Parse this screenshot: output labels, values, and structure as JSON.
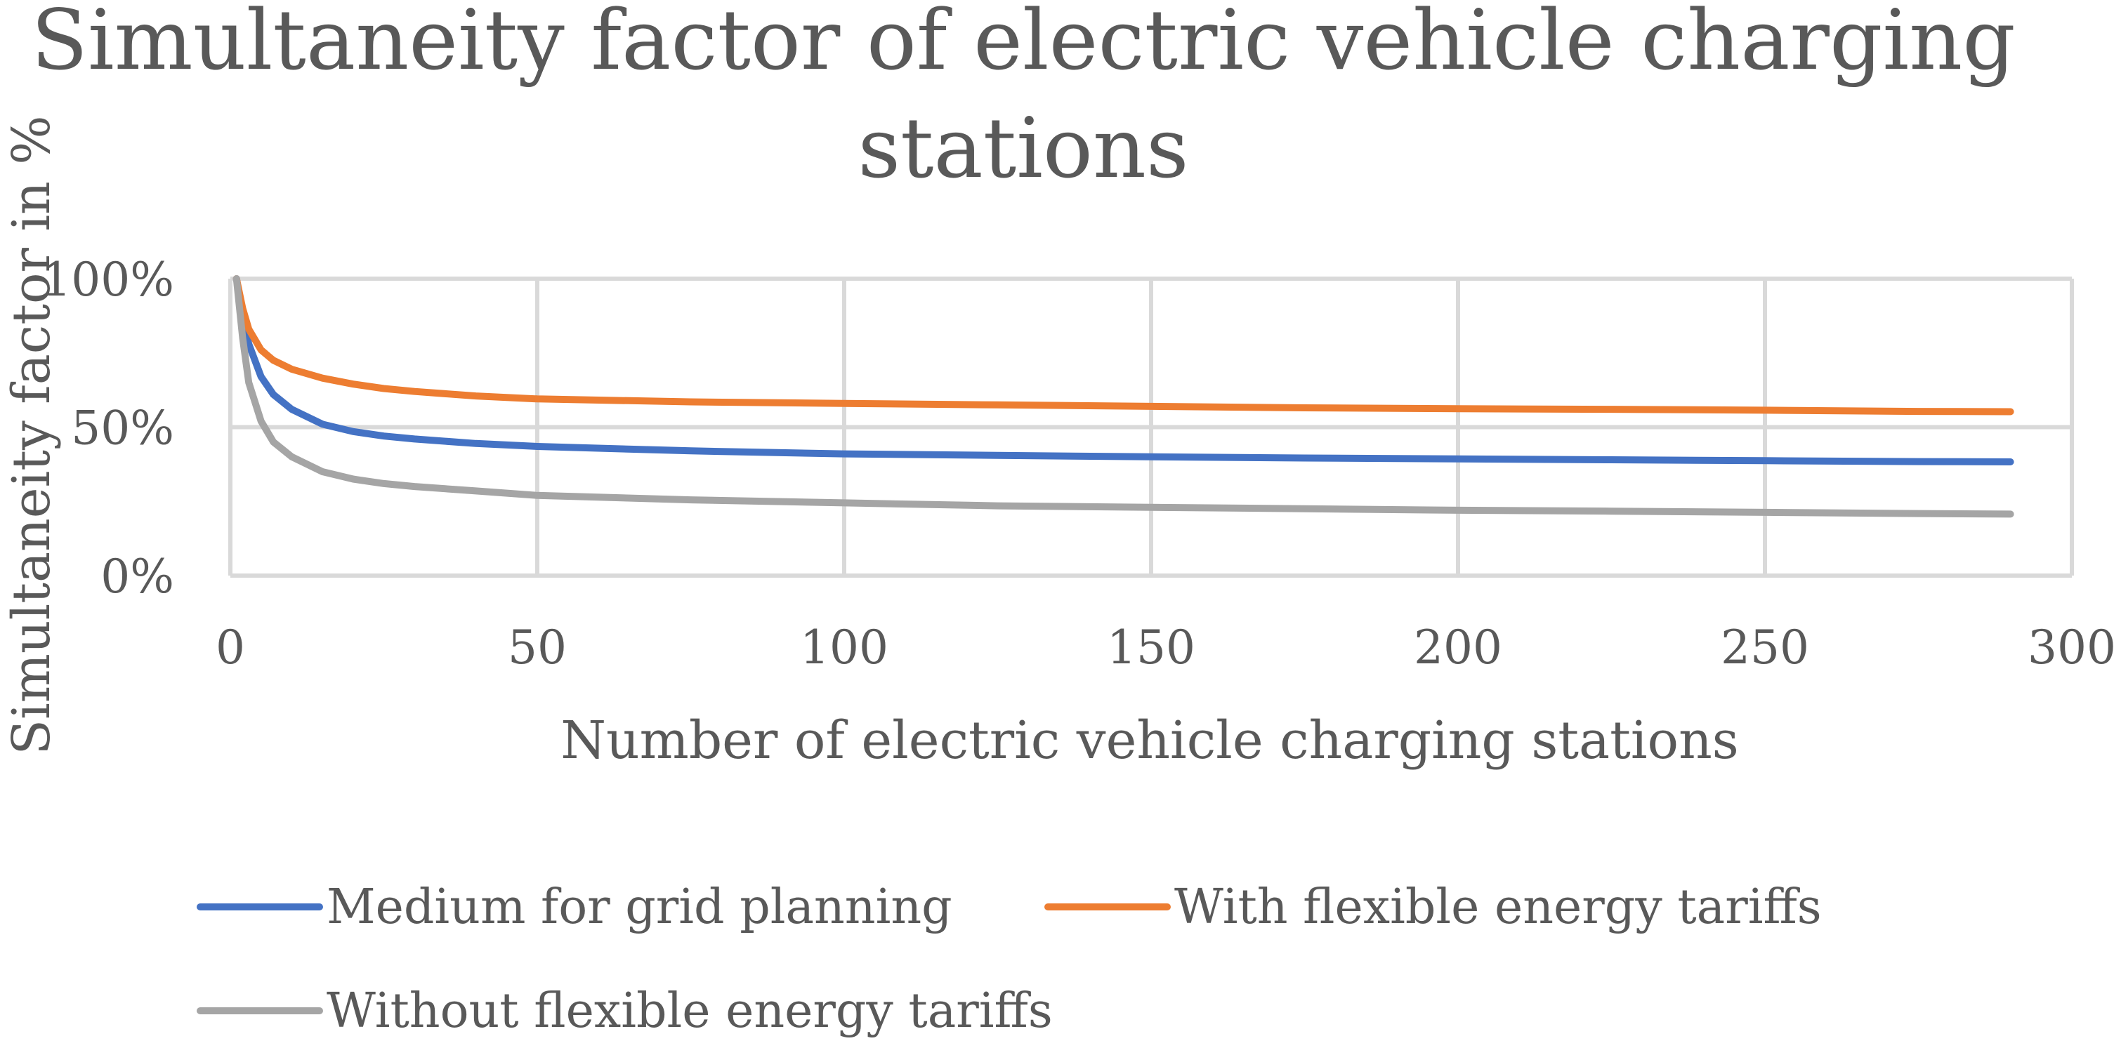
{
  "chart_data": {
    "type": "line",
    "title": "Simultaneity factor of electric vehicle charging stations",
    "title_lines": [
      "Simultaneity factor of electric vehicle charging",
      "stations"
    ],
    "xlabel": "Number of electric vehicle charging stations",
    "ylabel": "Simultaneity factor in %",
    "xlim": [
      0,
      300
    ],
    "ylim": [
      0,
      100
    ],
    "x_ticks": [
      0,
      50,
      100,
      150,
      200,
      250,
      300
    ],
    "x_tick_labels": [
      "0",
      "50",
      "100",
      "150",
      "200",
      "250",
      "300"
    ],
    "y_ticks": [
      0,
      50,
      100
    ],
    "y_tick_labels": [
      "0%",
      "50%",
      "100%"
    ],
    "grid": true,
    "legend_position": "bottom",
    "x": [
      1,
      2,
      3,
      5,
      7,
      10,
      15,
      20,
      25,
      30,
      40,
      50,
      75,
      100,
      125,
      150,
      175,
      200,
      225,
      250,
      275,
      290
    ],
    "series": [
      {
        "name": "Medium for grid planning",
        "color": "#4472C4",
        "values": [
          100,
          88,
          78,
          67,
          61,
          56,
          51,
          48.5,
          47,
          46,
          44.5,
          43.5,
          42,
          41,
          40.5,
          40,
          39.6,
          39.3,
          39,
          38.7,
          38.4,
          38.3
        ]
      },
      {
        "name": "With flexible energy tariffs",
        "color": "#ED7D31",
        "values": [
          100,
          90,
          83,
          76,
          72.5,
          69.5,
          66.5,
          64.5,
          63,
          62,
          60.5,
          59.5,
          58.5,
          58,
          57.5,
          57,
          56.5,
          56.2,
          56,
          55.7,
          55.3,
          55.2
        ]
      },
      {
        "name": "Without flexible energy tariffs",
        "color": "#A5A5A5",
        "values": [
          100,
          80,
          65,
          52,
          45,
          40,
          35,
          32.5,
          31,
          30,
          28.5,
          27,
          25.5,
          24.5,
          23.5,
          23,
          22.5,
          22,
          21.7,
          21.3,
          20.9,
          20.7
        ]
      }
    ]
  }
}
